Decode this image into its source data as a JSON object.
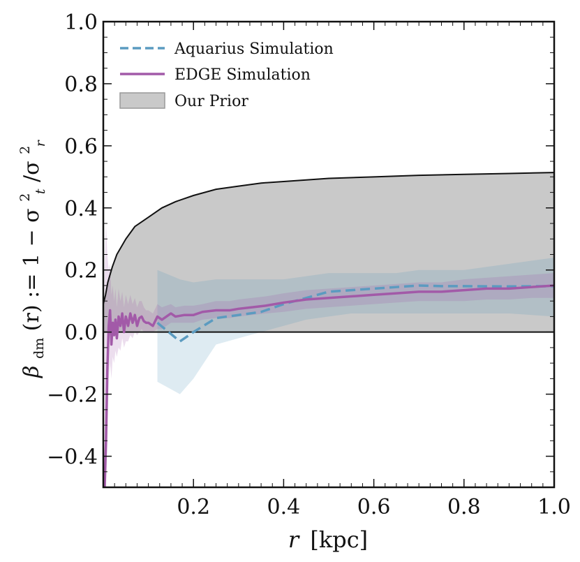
{
  "chart_data": {
    "type": "line",
    "title": "",
    "xlabel": "r [kpc]",
    "ylabel": "βdm(r) := 1 − σt²/σr²",
    "ylabel_parts": {
      "beta": "β",
      "beta_sub": "dm",
      "lhs": "(r) := 1 − σ",
      "t_sup": "2",
      "t_sub": "t",
      "slash": "/σ",
      "r_sup": "2",
      "r_sub": "r"
    },
    "xlabel_parts": {
      "var": "r",
      "unit": "[kpc]"
    },
    "xlim": [
      0.0,
      1.0
    ],
    "ylim": [
      -0.5,
      1.0
    ],
    "xticks": [
      {
        "value": 0.2,
        "label": "0.2"
      },
      {
        "value": 0.4,
        "label": "0.4"
      },
      {
        "value": 0.6,
        "label": "0.6"
      },
      {
        "value": 0.8,
        "label": "0.8"
      },
      {
        "value": 1.0,
        "label": "1.0"
      }
    ],
    "yticks": [
      {
        "value": -0.4,
        "label": "−0.4"
      },
      {
        "value": -0.2,
        "label": "−0.2"
      },
      {
        "value": 0.0,
        "label": "0.0"
      },
      {
        "value": 0.2,
        "label": "0.2"
      },
      {
        "value": 0.4,
        "label": "0.4"
      },
      {
        "value": 0.6,
        "label": "0.6"
      },
      {
        "value": 0.8,
        "label": "0.8"
      },
      {
        "value": 1.0,
        "label": "1.0"
      }
    ],
    "grid": false,
    "legend_position": "top-left",
    "legend": [
      {
        "label": "Aquarius Simulation",
        "kind": "dashed-line",
        "color": "#5b9bc0"
      },
      {
        "label": "EDGE Simulation",
        "kind": "line",
        "color": "#a25aa8"
      },
      {
        "label": "Our Prior",
        "kind": "band",
        "color": "#c9c9c9"
      }
    ],
    "prior_band": {
      "name": "Our Prior",
      "color": "#c9c9c9",
      "edge_color": "#111111",
      "x": [
        0.0,
        0.005,
        0.01,
        0.02,
        0.03,
        0.05,
        0.07,
        0.1,
        0.13,
        0.16,
        0.2,
        0.25,
        0.3,
        0.35,
        0.4,
        0.5,
        0.6,
        0.7,
        0.8,
        0.9,
        1.0
      ],
      "lower": [
        0,
        0,
        0,
        0,
        0,
        0,
        0,
        0,
        0,
        0,
        0,
        0,
        0,
        0,
        0,
        0,
        0,
        0,
        0,
        0,
        0
      ],
      "upper": [
        0.09,
        0.12,
        0.16,
        0.21,
        0.25,
        0.3,
        0.34,
        0.37,
        0.4,
        0.42,
        0.44,
        0.46,
        0.47,
        0.48,
        0.485,
        0.495,
        0.5,
        0.505,
        0.508,
        0.511,
        0.514
      ]
    },
    "series": [
      {
        "name": "Aquarius Simulation",
        "style": "dashed",
        "color": "#5b9bc0",
        "x": [
          0.12,
          0.17,
          0.2,
          0.25,
          0.3,
          0.35,
          0.4,
          0.45,
          0.5,
          0.55,
          0.6,
          0.65,
          0.7,
          0.75,
          0.8,
          0.9,
          1.0
        ],
        "y": [
          0.03,
          -0.03,
          0.0,
          0.045,
          0.055,
          0.065,
          0.09,
          0.11,
          0.13,
          0.135,
          0.14,
          0.145,
          0.15,
          0.148,
          0.148,
          0.147,
          0.148
        ],
        "lower": [
          -0.16,
          -0.2,
          -0.15,
          -0.04,
          -0.02,
          0.0,
          0.02,
          0.04,
          0.05,
          0.06,
          0.06,
          0.06,
          0.06,
          0.06,
          0.06,
          0.06,
          0.05
        ],
        "upper": [
          0.2,
          0.17,
          0.16,
          0.17,
          0.17,
          0.17,
          0.17,
          0.18,
          0.19,
          0.19,
          0.19,
          0.19,
          0.2,
          0.2,
          0.2,
          0.22,
          0.24
        ]
      },
      {
        "name": "EDGE Simulation",
        "style": "solid",
        "color": "#a25aa8",
        "x": [
          0.003,
          0.006,
          0.009,
          0.012,
          0.015,
          0.018,
          0.021,
          0.024,
          0.027,
          0.03,
          0.034,
          0.038,
          0.042,
          0.046,
          0.05,
          0.055,
          0.06,
          0.065,
          0.07,
          0.075,
          0.08,
          0.085,
          0.09,
          0.095,
          0.1,
          0.11,
          0.12,
          0.13,
          0.14,
          0.15,
          0.16,
          0.18,
          0.2,
          0.22,
          0.25,
          0.28,
          0.3,
          0.33,
          0.36,
          0.4,
          0.45,
          0.5,
          0.55,
          0.6,
          0.65,
          0.7,
          0.75,
          0.8,
          0.85,
          0.9,
          0.95,
          1.0
        ],
        "y": [
          -0.5,
          -0.35,
          -0.12,
          0.02,
          0.07,
          -0.04,
          0.03,
          -0.01,
          0.04,
          -0.02,
          0.05,
          0.02,
          0.06,
          0.0,
          0.05,
          0.02,
          0.06,
          0.03,
          0.055,
          0.02,
          0.045,
          0.05,
          0.035,
          0.03,
          0.03,
          0.02,
          0.05,
          0.04,
          0.05,
          0.06,
          0.05,
          0.055,
          0.055,
          0.065,
          0.07,
          0.07,
          0.075,
          0.08,
          0.085,
          0.095,
          0.105,
          0.11,
          0.115,
          0.12,
          0.125,
          0.13,
          0.13,
          0.135,
          0.14,
          0.14,
          0.145,
          0.15
        ],
        "lower": [
          -0.5,
          -0.5,
          -0.35,
          -0.15,
          -0.1,
          -0.15,
          -0.08,
          -0.1,
          -0.06,
          -0.08,
          -0.05,
          -0.06,
          -0.02,
          -0.05,
          -0.03,
          -0.03,
          -0.01,
          -0.02,
          0.0,
          -0.01,
          0.0,
          0.01,
          0.0,
          0.0,
          0.0,
          0.0,
          0.01,
          0.01,
          0.02,
          0.03,
          0.03,
          0.03,
          0.03,
          0.04,
          0.045,
          0.045,
          0.05,
          0.055,
          0.06,
          0.065,
          0.075,
          0.08,
          0.085,
          0.09,
          0.095,
          0.1,
          0.1,
          0.1,
          0.105,
          0.105,
          0.11,
          0.11
        ],
        "upper": [
          0.2,
          0.35,
          0.25,
          0.2,
          0.22,
          0.12,
          0.15,
          0.1,
          0.14,
          0.08,
          0.14,
          0.1,
          0.13,
          0.08,
          0.12,
          0.09,
          0.12,
          0.09,
          0.11,
          0.08,
          0.1,
          0.1,
          0.08,
          0.07,
          0.07,
          0.06,
          0.09,
          0.08,
          0.085,
          0.09,
          0.08,
          0.085,
          0.085,
          0.09,
          0.1,
          0.1,
          0.105,
          0.11,
          0.115,
          0.125,
          0.135,
          0.14,
          0.145,
          0.15,
          0.155,
          0.16,
          0.16,
          0.17,
          0.175,
          0.18,
          0.185,
          0.19
        ]
      }
    ]
  }
}
